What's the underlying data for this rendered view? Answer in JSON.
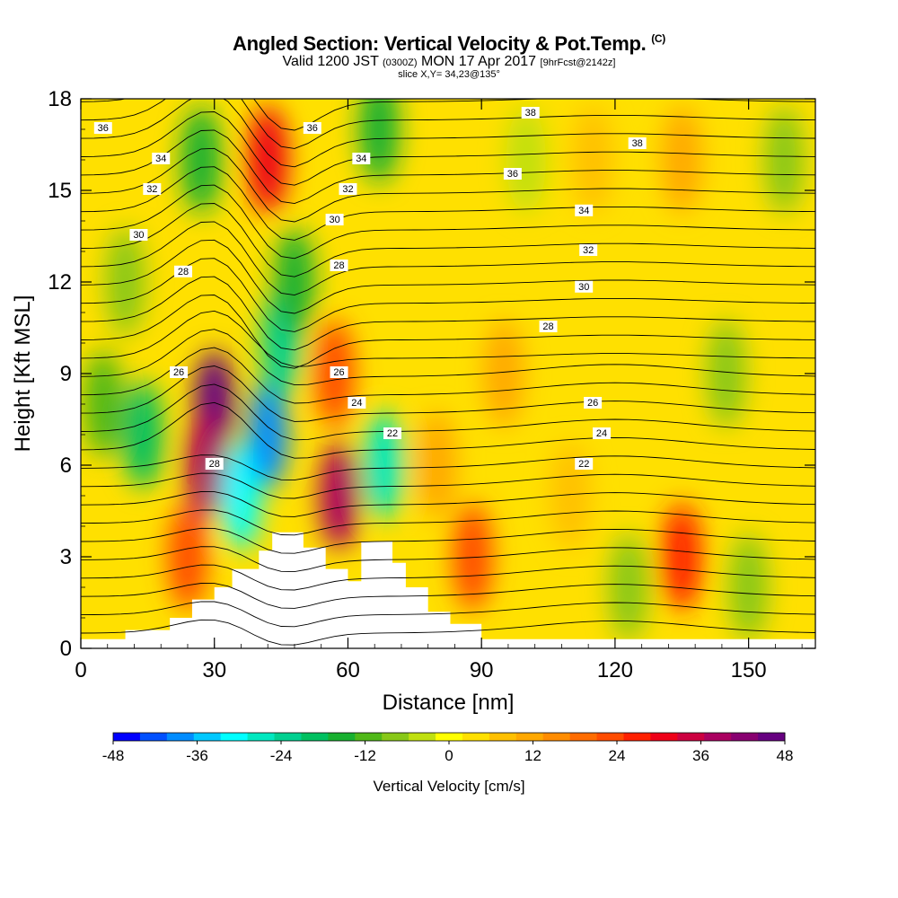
{
  "chart_data": {
    "type": "heatmap",
    "title": "Angled Section: Vertical Velocity & Pot.Temp.",
    "title_unit": "(C)",
    "subtitle_main": "Valid 1200 JST",
    "subtitle_utc": "(0300Z)",
    "subtitle_date": "MON 17 Apr 2017",
    "subtitle_fcst": "[9hrFcst@2142z]",
    "slice": "slice X,Y= 34,23@135°",
    "xlabel": "Distance [nm]",
    "ylabel": "Height [Kft MSL]",
    "xlim": [
      0,
      165
    ],
    "ylim": [
      0,
      18
    ],
    "xticks": [
      0,
      30,
      60,
      90,
      120,
      150
    ],
    "yticks": [
      0,
      3,
      6,
      9,
      12,
      15,
      18
    ],
    "colorbar": {
      "label": "Vertical Velocity [cm/s]",
      "ticks": [
        -48,
        -36,
        -24,
        -12,
        0,
        12,
        24,
        36,
        48
      ],
      "colors": [
        "#0000ff",
        "#0050ff",
        "#008cff",
        "#00c8ff",
        "#00ffff",
        "#00e8c0",
        "#00d090",
        "#00c060",
        "#18b030",
        "#50b818",
        "#88c818",
        "#c0e010",
        "#ffff00",
        "#ffe000",
        "#ffc000",
        "#ffa800",
        "#ff8c00",
        "#ff6c00",
        "#ff4c00",
        "#ff2000",
        "#ee0018",
        "#cc0040",
        "#aa0060",
        "#880070",
        "#660080"
      ]
    },
    "isentrope_labels": [
      "36",
      "34",
      "32",
      "30",
      "28",
      "38",
      "36",
      "34",
      "32",
      "30",
      "28",
      "26",
      "28",
      "26",
      "24",
      "22",
      "38",
      "36",
      "34",
      "32",
      "30",
      "28",
      "26",
      "24",
      "22"
    ],
    "vertical_velocity_cells": [
      {
        "x": 5,
        "y": 8,
        "v": -14
      },
      {
        "x": 14,
        "y": 7,
        "v": -20
      },
      {
        "x": 10,
        "y": 12,
        "v": -8
      },
      {
        "x": 30,
        "y": 8,
        "v": 46
      },
      {
        "x": 28,
        "y": 6,
        "v": 40
      },
      {
        "x": 24,
        "y": 3,
        "v": 24
      },
      {
        "x": 36,
        "y": 5,
        "v": -34
      },
      {
        "x": 42,
        "y": 7,
        "v": -40
      },
      {
        "x": 45,
        "y": 10,
        "v": -26
      },
      {
        "x": 48,
        "y": 12,
        "v": -16
      },
      {
        "x": 27,
        "y": 16,
        "v": -18
      },
      {
        "x": 42,
        "y": 16,
        "v": 30
      },
      {
        "x": 57,
        "y": 9,
        "v": 24
      },
      {
        "x": 58,
        "y": 5,
        "v": 38
      },
      {
        "x": 68,
        "y": 6,
        "v": -28
      },
      {
        "x": 67,
        "y": 17,
        "v": -16
      },
      {
        "x": 80,
        "y": 6,
        "v": 12
      },
      {
        "x": 88,
        "y": 3,
        "v": 24
      },
      {
        "x": 95,
        "y": 9,
        "v": 12
      },
      {
        "x": 100,
        "y": 16,
        "v": -6
      },
      {
        "x": 115,
        "y": 16,
        "v": 8
      },
      {
        "x": 110,
        "y": 5,
        "v": 6
      },
      {
        "x": 123,
        "y": 2,
        "v": -10
      },
      {
        "x": 135,
        "y": 3,
        "v": 26
      },
      {
        "x": 135,
        "y": 16,
        "v": 12
      },
      {
        "x": 145,
        "y": 9,
        "v": -8
      },
      {
        "x": 150,
        "y": 2,
        "v": -10
      },
      {
        "x": 158,
        "y": 16,
        "v": -8
      }
    ]
  }
}
